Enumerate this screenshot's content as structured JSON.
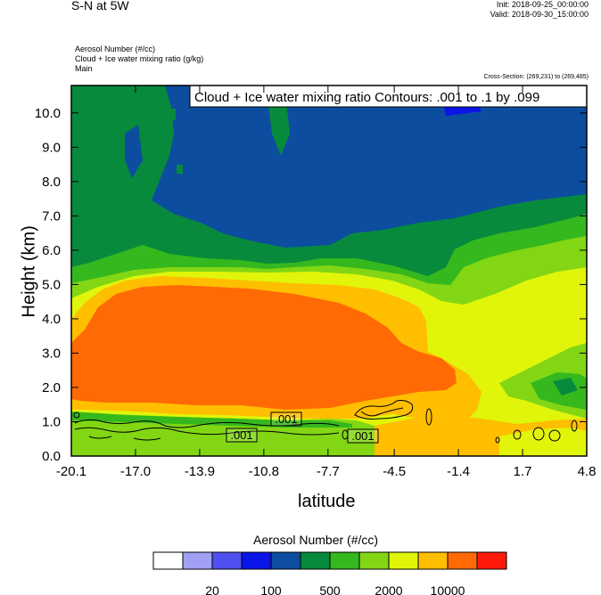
{
  "header": {
    "title": "S-N at 5W",
    "init": "Init: 2018-09-25_00:00:00",
    "valid": "Valid: 2018-09-30_15:00:00",
    "field1": "Aerosol Number   (#/cc)",
    "field2": "Cloud + Ice water mixing ratio   (g/kg)",
    "field3": "Main",
    "cross_section": "Cross-Section: (269,231) to (269,485)"
  },
  "chart_data": {
    "type": "heatmap",
    "xlabel": "latitude",
    "ylabel": "Height (km)",
    "x_ticks": [
      "-20.1",
      "-17.0",
      "-13.9",
      "-10.8",
      "-7.7",
      "-4.5",
      "-1.4",
      "1.7",
      "4.8"
    ],
    "y_ticks": [
      "0.0",
      "1.0",
      "2.0",
      "3.0",
      "4.0",
      "5.0",
      "6.0",
      "7.0",
      "8.0",
      "9.0",
      "10.0"
    ],
    "xlim": [
      -20.1,
      4.8
    ],
    "ylim": [
      0.0,
      10.8
    ],
    "contour_title": "Cloud + Ice water mixing ratio Contours: .001 to .1 by .099",
    "contour_labels": [
      ".001",
      ".001",
      ".001"
    ],
    "colorbar": {
      "title": "Aerosol Number  (#/cc)",
      "colors": [
        "#ffffff",
        "#a0a0f5",
        "#5050f0",
        "#0a14e6",
        "#0c4da0",
        "#078a3c",
        "#35b81e",
        "#82d614",
        "#e0f50a",
        "#ffbe00",
        "#ff6a05",
        "#ff1a0a"
      ],
      "labels": [
        "20",
        "100",
        "500",
        "2000",
        "10000"
      ]
    },
    "regions_note_colors": {
      "upper_blue": "#0c4da0",
      "green": "#078a3c",
      "mid_green": "#35b81e",
      "lime": "#82d614",
      "yellow": "#e0f50a",
      "orange": "#ffbe00",
      "red_orange": "#ff6a05"
    }
  }
}
